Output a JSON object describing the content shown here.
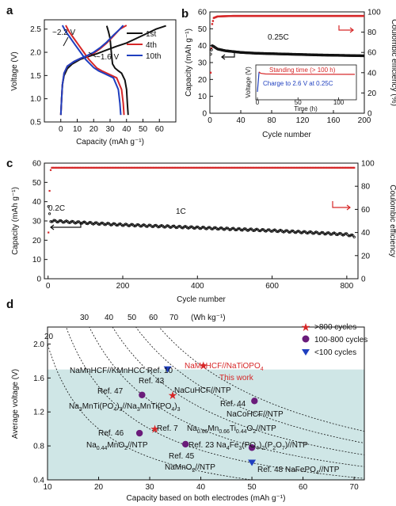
{
  "figure": {
    "panels": [
      "a",
      "b",
      "c",
      "d"
    ]
  },
  "chart_data": [
    {
      "id": "a",
      "type": "line",
      "xlabel": "Capacity (mAh g⁻¹)",
      "ylabel": "Voltage (V)",
      "xlim": [
        -10,
        70
      ],
      "ylim": [
        0.5,
        2.7
      ],
      "xticks": [
        0,
        10,
        20,
        30,
        40,
        50,
        60
      ],
      "yticks": [
        0.5,
        1.0,
        1.5,
        2.0,
        2.5
      ],
      "annotations": [
        "~2.2 V",
        "~1.6 V"
      ],
      "series": [
        {
          "name": "1st",
          "color": "#111111",
          "charge": [
            [
              0,
              0.65
            ],
            [
              0.5,
              1.0
            ],
            [
              1,
              1.3
            ],
            [
              2,
              1.5
            ],
            [
              4,
              1.65
            ],
            [
              7,
              1.75
            ],
            [
              12,
              1.85
            ],
            [
              16,
              1.9
            ],
            [
              22,
              1.97
            ],
            [
              28,
              2.05
            ],
            [
              34,
              2.13
            ],
            [
              40,
              2.2
            ],
            [
              46,
              2.3
            ],
            [
              52,
              2.4
            ],
            [
              58,
              2.5
            ],
            [
              64,
              2.57
            ]
          ],
          "discharge": [
            [
              28,
              2.57
            ],
            [
              29,
              2.45
            ],
            [
              30,
              2.3
            ],
            [
              30.5,
              2.1
            ],
            [
              31,
              1.9
            ],
            [
              31.5,
              1.75
            ],
            [
              33,
              1.66
            ],
            [
              35,
              1.6
            ],
            [
              37,
              1.55
            ],
            [
              39,
              1.4
            ],
            [
              40,
              1.2
            ],
            [
              40.5,
              0.9
            ],
            [
              41,
              0.65
            ]
          ]
        },
        {
          "name": "4th",
          "color": "#d62728",
          "charge": [
            [
              0,
              0.65
            ],
            [
              0.5,
              1.0
            ],
            [
              1,
              1.3
            ],
            [
              2,
              1.55
            ],
            [
              4,
              1.7
            ],
            [
              8,
              1.8
            ],
            [
              12,
              1.87
            ],
            [
              16,
              1.92
            ],
            [
              20,
              1.98
            ],
            [
              24,
              2.08
            ],
            [
              28,
              2.2
            ],
            [
              32,
              2.35
            ],
            [
              36,
              2.5
            ],
            [
              40,
              2.58
            ]
          ],
          "discharge": [
            [
              3,
              2.58
            ],
            [
              5,
              2.45
            ],
            [
              8,
              2.3
            ],
            [
              11,
              2.15
            ],
            [
              14,
              2.0
            ],
            [
              17,
              1.85
            ],
            [
              22,
              1.66
            ],
            [
              25,
              1.6
            ],
            [
              28,
              1.55
            ],
            [
              34,
              1.45
            ],
            [
              37,
              1.2
            ],
            [
              38,
              0.9
            ],
            [
              38.5,
              0.65
            ]
          ]
        },
        {
          "name": "10th",
          "color": "#1f3fbf",
          "charge": [
            [
              0,
              0.65
            ],
            [
              0.5,
              1.0
            ],
            [
              1,
              1.3
            ],
            [
              2,
              1.55
            ],
            [
              4,
              1.7
            ],
            [
              8,
              1.8
            ],
            [
              12,
              1.87
            ],
            [
              16,
              1.93
            ],
            [
              20,
              2.0
            ],
            [
              24,
              2.1
            ],
            [
              28,
              2.22
            ],
            [
              32,
              2.37
            ],
            [
              36,
              2.5
            ],
            [
              38,
              2.58
            ]
          ],
          "discharge": [
            [
              1,
              2.58
            ],
            [
              3,
              2.45
            ],
            [
              6,
              2.3
            ],
            [
              9,
              2.15
            ],
            [
              12,
              2.0
            ],
            [
              15,
              1.85
            ],
            [
              20,
              1.67
            ],
            [
              23,
              1.6
            ],
            [
              26,
              1.55
            ],
            [
              32,
              1.45
            ],
            [
              35,
              1.2
            ],
            [
              36,
              0.9
            ],
            [
              36.5,
              0.65
            ]
          ]
        }
      ]
    },
    {
      "id": "b",
      "type": "scatter",
      "xlabel": "Cycle number",
      "ylabel": "Capacity (mAh g⁻¹)",
      "y2label": "Coulombic efficiency (%)",
      "xlim": [
        0,
        200
      ],
      "ylim": [
        0,
        60
      ],
      "y2lim": [
        0,
        100
      ],
      "xticks": [
        0,
        40,
        80,
        120,
        160,
        200
      ],
      "yticks": [
        0,
        10,
        20,
        30,
        40,
        50,
        60
      ],
      "y2ticks": [
        0,
        20,
        40,
        60,
        80,
        100
      ],
      "rate_label": "0.25C",
      "capacity_trend": [
        [
          1,
          35
        ],
        [
          3,
          40
        ],
        [
          5,
          39.5
        ],
        [
          10,
          38
        ],
        [
          20,
          37
        ],
        [
          40,
          36
        ],
        [
          60,
          35.5
        ],
        [
          100,
          35
        ],
        [
          140,
          34.5
        ],
        [
          200,
          34
        ]
      ],
      "efficiency_trend": [
        [
          1,
          40
        ],
        [
          3,
          88
        ],
        [
          5,
          94
        ],
        [
          10,
          95.5
        ],
        [
          30,
          96
        ],
        [
          200,
          96
        ]
      ],
      "inset": {
        "xlabel": "Time (h)",
        "ylabel": "Voltage (V)",
        "xlim": [
          0,
          120
        ],
        "xticks": [
          0,
          50,
          100
        ],
        "labels": [
          "Standing time (> 100 h)",
          "Charge to 2.6 V at 0.25C"
        ],
        "line": [
          [
            0,
            0.5
          ],
          [
            2,
            2.6
          ],
          [
            4,
            2.45
          ],
          [
            10,
            2.38
          ],
          [
            40,
            2.35
          ],
          [
            120,
            2.34
          ]
        ]
      }
    },
    {
      "id": "c",
      "type": "scatter",
      "xlabel": "Cycle number",
      "ylabel": "Capacity (mAh g⁻¹)",
      "y2label": "Coulombic efficiency",
      "xlim": [
        -10,
        830
      ],
      "ylim": [
        0,
        60
      ],
      "y2lim": [
        0,
        100
      ],
      "xticks": [
        0,
        200,
        400,
        600,
        800
      ],
      "yticks": [
        0,
        10,
        20,
        30,
        40,
        50,
        60
      ],
      "y2ticks": [
        0,
        20,
        40,
        60,
        80,
        100
      ],
      "rate_labels": [
        "0.2C",
        "1C"
      ],
      "capacity_trend": [
        [
          1,
          37
        ],
        [
          3,
          37
        ],
        [
          5,
          30
        ],
        [
          10,
          30
        ],
        [
          100,
          29
        ],
        [
          200,
          28
        ],
        [
          400,
          26.5
        ],
        [
          600,
          25
        ],
        [
          800,
          23
        ],
        [
          820,
          22
        ]
      ],
      "efficiency_trend": [
        [
          1,
          40
        ],
        [
          2,
          55
        ],
        [
          3,
          62
        ],
        [
          5,
          90
        ],
        [
          8,
          96
        ],
        [
          820,
          96
        ]
      ]
    },
    {
      "id": "d",
      "type": "scatter",
      "xlabel": "Capacity based on both electrodes (mAh g⁻¹)",
      "ylabel": "Average voltage (V)",
      "xlim": [
        10,
        72
      ],
      "ylim": [
        0.4,
        2.2
      ],
      "xticks": [
        10,
        20,
        30,
        40,
        50,
        60,
        70
      ],
      "yticks": [
        0.4,
        0.8,
        1.2,
        1.6,
        2.0
      ],
      "energy_lines_Wh_per_kg": [
        20,
        30,
        40,
        50,
        60,
        70
      ],
      "energy_unit": "(Wh kg⁻¹)",
      "legend": [
        {
          "label": ">800 cycles",
          "marker": "star",
          "color": "#d62728"
        },
        {
          "label": "100-800 cycles",
          "marker": "circle",
          "color": "#6a1b7a"
        },
        {
          "label": "<100 cycles",
          "marker": "triangle",
          "color": "#1f3fbf"
        }
      ],
      "points": [
        {
          "x": 40.5,
          "y": 1.75,
          "marker": "star",
          "color": "#d62728",
          "label": "NaMnHCF//NaTiOPO4 This work"
        },
        {
          "x": 33.5,
          "y": 1.7,
          "marker": "triangle",
          "color": "#1f3fbf",
          "label": "NaMnHCF//KMnHCC Ref. 10"
        },
        {
          "x": 34.5,
          "y": 1.4,
          "marker": "star",
          "color": "#d62728",
          "label": "Ref. 43 NaCuHCF//NTP"
        },
        {
          "x": 28.5,
          "y": 1.4,
          "marker": "circle",
          "color": "#6a1b7a",
          "label": "Ref. 47 Na3MnTi(PO4)3//Na3MnTi(PO4)3"
        },
        {
          "x": 50.5,
          "y": 1.33,
          "marker": "circle",
          "color": "#6a1b7a",
          "label": "Ref. 44 NaCoHCF//NTP"
        },
        {
          "x": 31.0,
          "y": 1.0,
          "marker": "star",
          "color": "#d62728",
          "label": "Ref. 7 Na0.66Mn0.66Ti0.44O2//NTP"
        },
        {
          "x": 28.0,
          "y": 0.95,
          "marker": "circle",
          "color": "#6a1b7a",
          "label": "Ref. 46 Na0.44MnO2//NTP"
        },
        {
          "x": 37.0,
          "y": 0.82,
          "marker": "circle",
          "color": "#6a1b7a",
          "label": "Ref. 45 NaMnO2//NTP"
        },
        {
          "x": 50.0,
          "y": 0.78,
          "marker": "circle",
          "color": "#6a1b7a",
          "label": "Ref. 23 Na4Fe3(PO4)2(P2O7)//NTP"
        },
        {
          "x": 50.0,
          "y": 0.6,
          "marker": "triangle",
          "color": "#1f3fbf",
          "label": "Ref. 48 NaFePO4//NTP"
        }
      ],
      "shaded_region": {
        "y_max": 1.7,
        "color": "#cfe6e6"
      }
    }
  ]
}
